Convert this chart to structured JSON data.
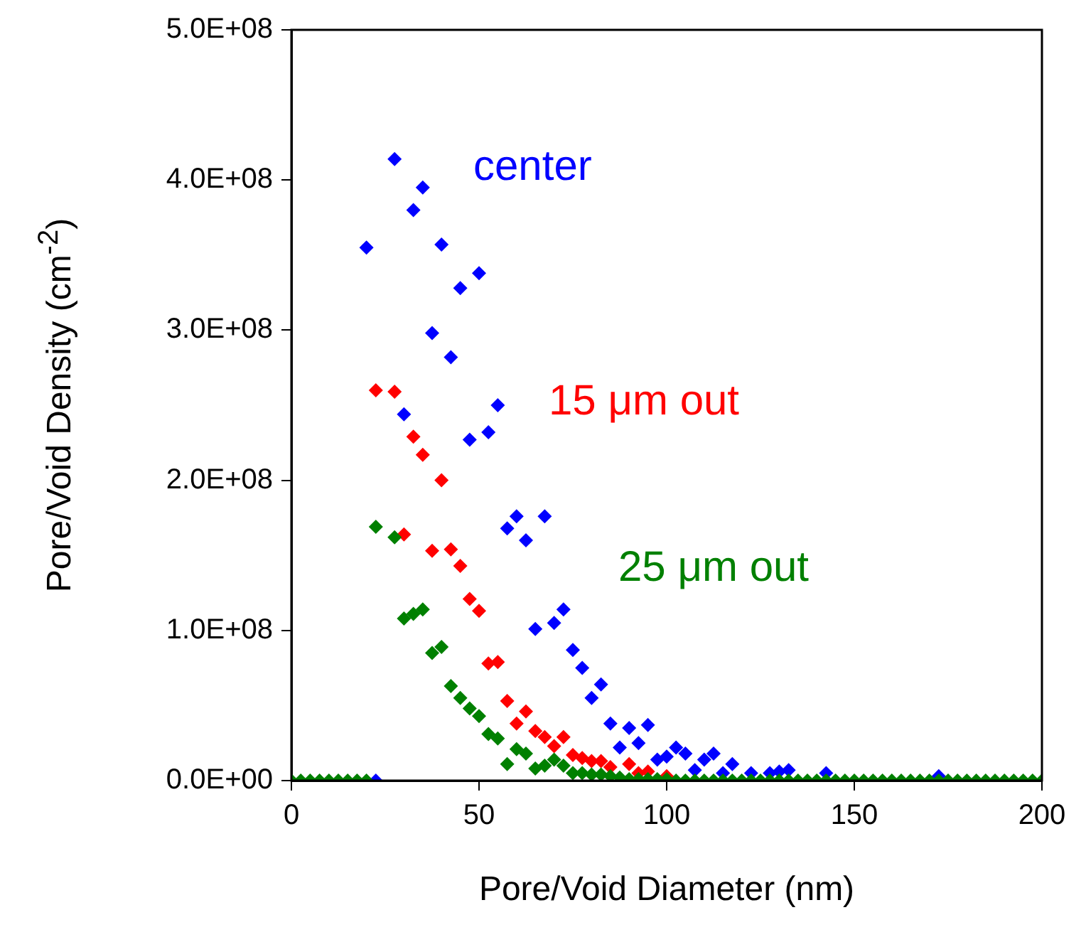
{
  "chart_data": {
    "type": "scatter",
    "xlabel": "Pore/Void Diameter (nm)",
    "ylabel": "Pore/Void Density (cm$^{-2}$)",
    "x": [
      0,
      2.5,
      5,
      7.5,
      10,
      12.5,
      15,
      17.5,
      20,
      22.5,
      25,
      27.5,
      30,
      32.5,
      35,
      37.5,
      40,
      42.5,
      45,
      47.5,
      50,
      52.5,
      55,
      57.5,
      60,
      62.5,
      65,
      67.5,
      70,
      72.5,
      75,
      77.5,
      80,
      82.5,
      85,
      87.5,
      90,
      92.5,
      95,
      97.5,
      100,
      102.5,
      105,
      107.5,
      110,
      112.5,
      115,
      117.5,
      120,
      122.5,
      125,
      127.5,
      130,
      132.5,
      135,
      137.5,
      140,
      142.5,
      145,
      147.5,
      150,
      152.5,
      155,
      157.5,
      160,
      162.5,
      165,
      167.5,
      170,
      172.5,
      175,
      177.5,
      180,
      182.5,
      185,
      187.5,
      190,
      192.5,
      195,
      197.5,
      200
    ],
    "series": [
      {
        "color": "#0000ff",
        "values": [
          null,
          null,
          null,
          null,
          null,
          null,
          null,
          null,
          355000000.0,
          0,
          null,
          414000000.0,
          244000000.0,
          380000000.0,
          395000000.0,
          298000000.0,
          357000000.0,
          282000000.0,
          328000000.0,
          227000000.0,
          338000000.0,
          232000000.0,
          250000000.0,
          168000000.0,
          176000000.0,
          160000000.0,
          101000000.0,
          176000000.0,
          105000000.0,
          114000000.0,
          87000000.0,
          75000000.0,
          55000000.0,
          64000000.0,
          38000000.0,
          22000000.0,
          35000000.0,
          25000000.0,
          37000000.0,
          14000000.0,
          16000000.0,
          22000000.0,
          18000000.0,
          7000000.0,
          14000000.0,
          18000000.0,
          5000000.0,
          11000000.0,
          null,
          5000000.0,
          null,
          5000000.0,
          6000000.0,
          7000000.0,
          null,
          null,
          null,
          5000000.0,
          null,
          null,
          null,
          null,
          null,
          null,
          null,
          null,
          null,
          null,
          null,
          3000000.0,
          null,
          null,
          null,
          null,
          null,
          null,
          null,
          null,
          null,
          null,
          null
        ]
      },
      {
        "color": "#ff0000",
        "values": [
          null,
          null,
          null,
          null,
          null,
          null,
          null,
          null,
          null,
          260000000.0,
          null,
          259000000.0,
          164000000.0,
          229000000.0,
          217000000.0,
          153000000.0,
          200000000.0,
          154000000.0,
          143000000.0,
          121000000.0,
          113000000.0,
          78000000.0,
          79000000.0,
          53000000.0,
          38000000.0,
          46000000.0,
          33000000.0,
          29000000.0,
          23000000.0,
          29000000.0,
          17000000.0,
          15000000.0,
          13000000.0,
          13000000.0,
          9000000.0,
          null,
          11000000.0,
          5000000.0,
          6000000.0,
          null,
          3000000.0,
          null,
          null,
          null,
          null,
          null,
          null,
          null,
          null,
          null,
          null,
          null,
          null,
          null,
          null,
          null,
          null,
          null,
          null,
          null,
          null,
          null,
          null,
          null,
          null,
          null,
          null,
          null,
          null,
          null,
          null,
          null,
          null,
          null,
          null,
          null,
          null,
          null,
          null,
          null,
          null
        ]
      },
      {
        "color": "#008000",
        "values": [
          0,
          0,
          0,
          0,
          0,
          0,
          0,
          0,
          0,
          169000000.0,
          null,
          162000000.0,
          108000000.0,
          111000000.0,
          114000000.0,
          85000000.0,
          89000000.0,
          63000000.0,
          55000000.0,
          48000000.0,
          43000000.0,
          31000000.0,
          28000000.0,
          11000000.0,
          21000000.0,
          18000000.0,
          8000000.0,
          10000000.0,
          14000000.0,
          10000000.0,
          5000000.0,
          5000000.0,
          4000000.0,
          4000000.0,
          3000000.0,
          2000000.0,
          1000000.0,
          1000000.0,
          1000000.0,
          1000000.0,
          1000000.0,
          0,
          0,
          0,
          0,
          0,
          0,
          0,
          0,
          0,
          0,
          0,
          0,
          0,
          0,
          0,
          0,
          0,
          0,
          0,
          0,
          0,
          0,
          0,
          0,
          0,
          0,
          0,
          0,
          0,
          0,
          0,
          0,
          0,
          0,
          0,
          0,
          0,
          0,
          0,
          0
        ]
      }
    ],
    "annotations": [
      "center",
      "15 μm out",
      "25 μm out"
    ],
    "xlim": [
      0,
      200
    ],
    "xticks": [
      0,
      50,
      100,
      150,
      200
    ],
    "ylim": [
      0,
      500000000.0
    ],
    "yticks": [
      {
        "value": 0,
        "label": "0.0E+00"
      },
      {
        "value": 100000000.0,
        "label": "1.0E+08"
      },
      {
        "value": 200000000.0,
        "label": "2.0E+08"
      },
      {
        "value": 300000000.0,
        "label": "3.0E+08"
      },
      {
        "value": 400000000.0,
        "label": "4.0E+08"
      },
      {
        "value": 500000000.0,
        "label": "5.0E+08"
      }
    ],
    "marker": "diamond",
    "grid": false,
    "legend": false
  }
}
